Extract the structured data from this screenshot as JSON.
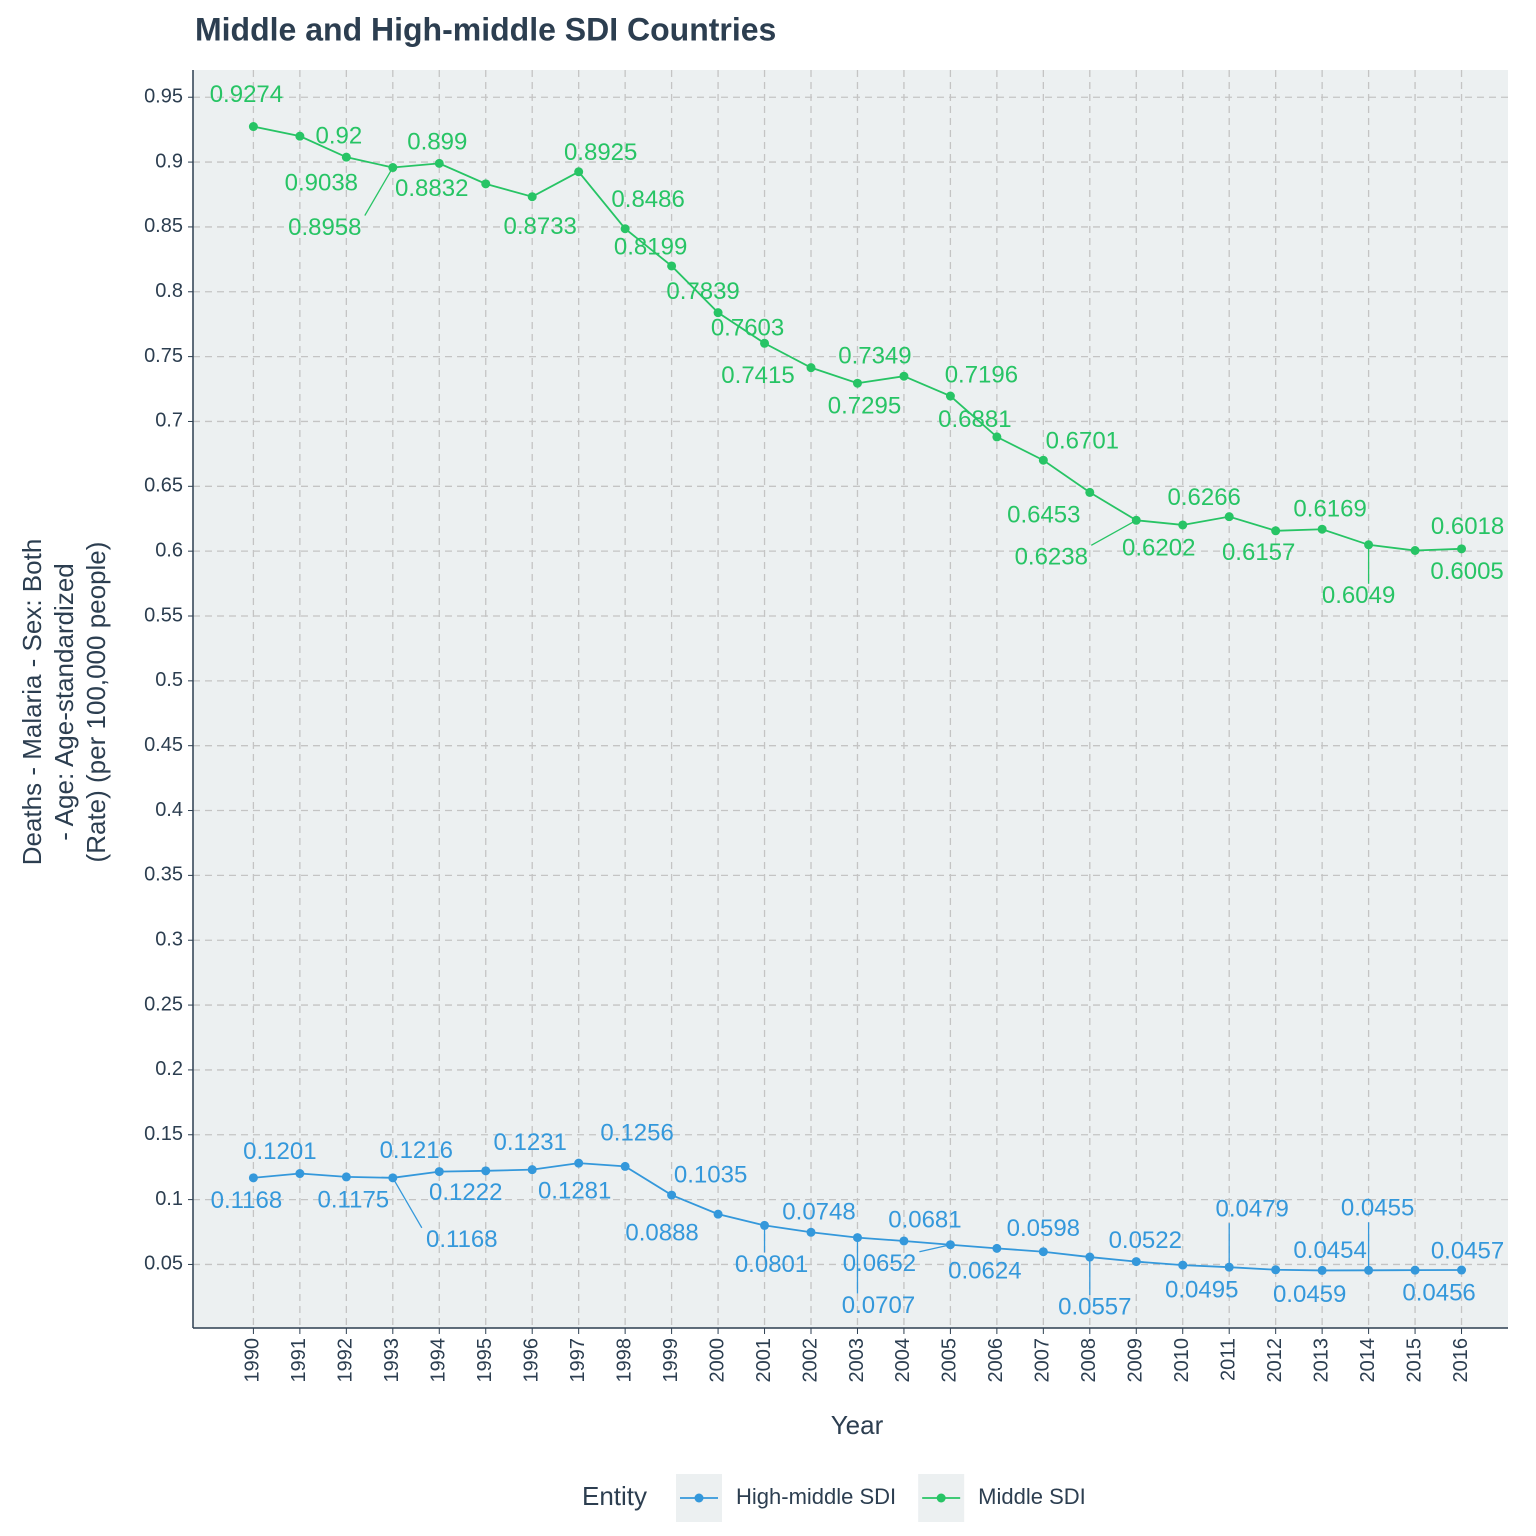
{
  "chart_data": {
    "type": "line",
    "title": "Middle and High-middle SDI Countries",
    "x_label": "Year",
    "y_label": [
      "Deaths - Malaria - Sex: Both",
      "- Age: Age-standardized",
      "(Rate) (per 100,000 people)"
    ],
    "legend_title": "Entity",
    "legend_position": "bottom",
    "grid": true,
    "x": [
      1990,
      1991,
      1992,
      1993,
      1994,
      1995,
      1996,
      1997,
      1998,
      1999,
      2000,
      2001,
      2002,
      2003,
      2004,
      2005,
      2006,
      2007,
      2008,
      2009,
      2010,
      2011,
      2012,
      2013,
      2014,
      2015,
      2016
    ],
    "xlim": [
      1988.7,
      2017.0
    ],
    "xticks": [
      1990,
      1991,
      1992,
      1993,
      1994,
      1995,
      1996,
      1997,
      1998,
      1999,
      2000,
      2001,
      2002,
      2003,
      2004,
      2005,
      2006,
      2007,
      2008,
      2009,
      2010,
      2011,
      2012,
      2013,
      2014,
      2015,
      2016
    ],
    "ylim": [
      0.001,
      0.971
    ],
    "yticks": [
      0.05,
      0.1,
      0.15,
      0.2,
      0.25,
      0.3,
      0.35,
      0.4,
      0.45,
      0.5,
      0.55,
      0.6,
      0.65,
      0.7,
      0.75,
      0.8,
      0.85,
      0.9,
      0.95
    ],
    "series": [
      {
        "name": "High-middle SDI",
        "color": "#3498db",
        "values": [
          0.1168,
          0.1201,
          0.1175,
          0.1168,
          0.1216,
          0.1222,
          0.1231,
          0.1281,
          0.1256,
          0.1035,
          0.0888,
          0.0801,
          0.0748,
          0.0707,
          0.0681,
          0.0652,
          0.0624,
          0.0598,
          0.0557,
          0.0522,
          0.0495,
          0.0479,
          0.0459,
          0.0454,
          0.0455,
          0.0456,
          0.0457
        ]
      },
      {
        "name": "Middle SDI",
        "color": "#27c465",
        "values": [
          0.9274,
          0.92,
          0.9038,
          0.8958,
          0.899,
          0.8832,
          0.8733,
          0.8925,
          0.8486,
          0.8199,
          0.7839,
          0.7603,
          0.7415,
          0.7295,
          0.7349,
          0.7196,
          0.6881,
          0.6701,
          0.6453,
          0.6238,
          0.6202,
          0.6266,
          0.6157,
          0.6169,
          0.6049,
          0.6005,
          0.6018
        ]
      }
    ]
  }
}
